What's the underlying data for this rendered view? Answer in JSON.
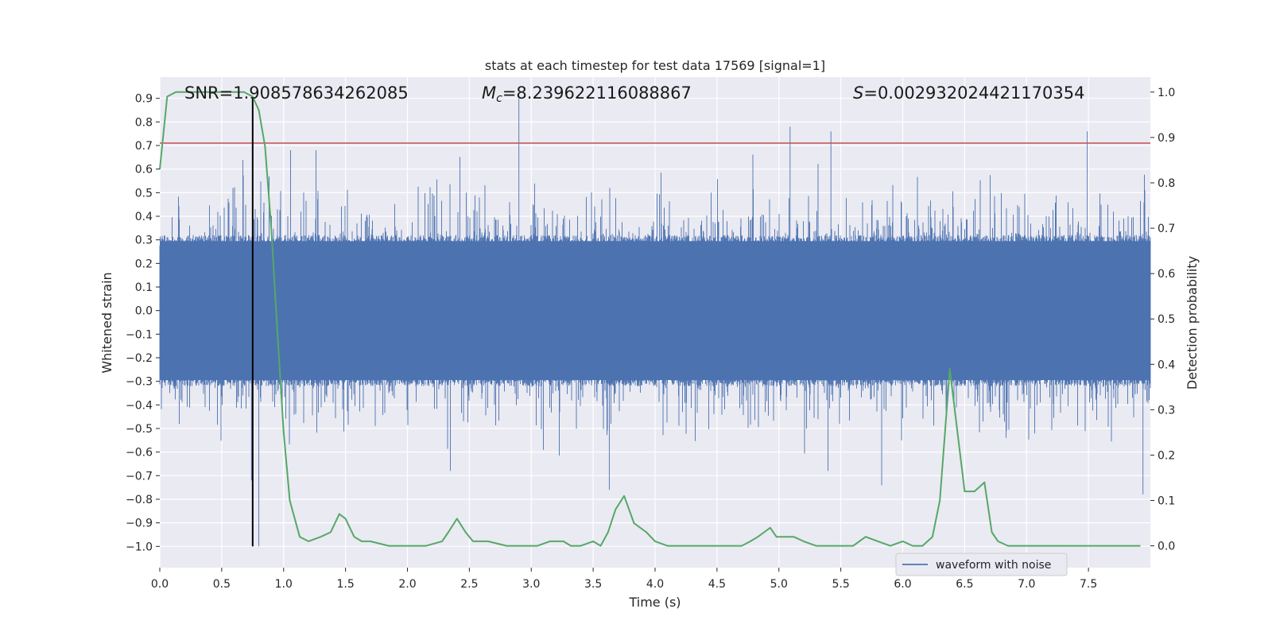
{
  "chart_data": {
    "type": "line",
    "title": "stats at each timestep for test data 17569 [signal=1]",
    "xlabel": "Time (s)",
    "ylabel_left": "Whitened strain",
    "ylabel_right": "Detection probability",
    "xlim": [
      0.0,
      8.0
    ],
    "ylim_left": [
      -1.09,
      0.99
    ],
    "ylim_right": [
      -0.048,
      1.033
    ],
    "x_ticks": [
      "0.0",
      "0.5",
      "1.0",
      "1.5",
      "2.0",
      "2.5",
      "3.0",
      "3.5",
      "4.0",
      "4.5",
      "5.0",
      "5.5",
      "6.0",
      "6.5",
      "7.0",
      "7.5"
    ],
    "y_left_ticks": [
      "0.9",
      "0.8",
      "0.7",
      "0.6",
      "0.5",
      "0.4",
      "0.3",
      "0.2",
      "0.1",
      "0.0",
      "−0.1",
      "−0.2",
      "−0.3",
      "−0.4",
      "−0.5",
      "−0.6",
      "−0.7",
      "−0.8",
      "−0.9",
      "−1.0"
    ],
    "y_left_tick_values": [
      0.9,
      0.8,
      0.7,
      0.6,
      0.5,
      0.4,
      0.3,
      0.2,
      0.1,
      0.0,
      -0.1,
      -0.2,
      -0.3,
      -0.4,
      -0.5,
      -0.6,
      -0.7,
      -0.8,
      -0.9,
      -1.0
    ],
    "y_right_ticks": [
      "1.0",
      "0.9",
      "0.8",
      "0.7",
      "0.6",
      "0.5",
      "0.4",
      "0.3",
      "0.2",
      "0.1",
      "0.0"
    ],
    "y_right_tick_values": [
      1.0,
      0.9,
      0.8,
      0.7,
      0.6,
      0.5,
      0.4,
      0.3,
      0.2,
      0.1,
      0.0
    ],
    "annotations": {
      "snr": "SNR=1.908578634262085",
      "mc_symbol": "M",
      "mc_sub": "c",
      "mc_value": "=8.239622116088867",
      "s_symbol": "S",
      "s_value": "=0.002932024421170354"
    },
    "legend": [
      "waveform with noise"
    ],
    "series": [
      {
        "name": "waveform with noise",
        "axis": "left",
        "color": "#4c72b0",
        "description": "dense noisy strain, mostly within ±0.35 with spikes to ±0.9",
        "envelope_amplitude": 0.32,
        "peaks": [
          {
            "x": 2.9,
            "y": 0.9
          },
          {
            "x": 5.09,
            "y": 0.78
          },
          {
            "x": 5.42,
            "y": 0.76
          },
          {
            "x": 7.49,
            "y": 0.76
          },
          {
            "x": 0.8,
            "y": -1.0
          },
          {
            "x": 0.74,
            "y": -0.72
          },
          {
            "x": 3.63,
            "y": -0.76
          },
          {
            "x": 5.83,
            "y": -0.74
          },
          {
            "x": 7.94,
            "y": -0.78
          },
          {
            "x": 6.48,
            "y": -0.15
          }
        ]
      },
      {
        "name": "detection probability",
        "axis": "right",
        "color": "#55a868",
        "x": [
          0.0,
          0.06,
          0.13,
          0.2,
          0.6,
          0.68,
          0.75,
          0.8,
          0.85,
          0.9,
          0.95,
          1.0,
          1.05,
          1.13,
          1.2,
          1.3,
          1.38,
          1.45,
          1.5,
          1.57,
          1.63,
          1.7,
          1.85,
          2.0,
          2.15,
          2.28,
          2.33,
          2.4,
          2.47,
          2.53,
          2.65,
          2.8,
          2.95,
          3.05,
          3.15,
          3.2,
          3.26,
          3.32,
          3.4,
          3.5,
          3.56,
          3.62,
          3.68,
          3.75,
          3.83,
          3.93,
          4.0,
          4.1,
          4.3,
          4.5,
          4.7,
          4.77,
          4.83,
          4.88,
          4.93,
          4.98,
          5.05,
          5.12,
          5.2,
          5.3,
          5.4,
          5.5,
          5.6,
          5.7,
          5.8,
          5.9,
          6.0,
          6.08,
          6.16,
          6.24,
          6.3,
          6.38,
          6.5,
          6.58,
          6.66,
          6.72,
          6.77,
          6.85,
          7.0,
          7.5,
          7.8,
          7.92
        ],
        "y": [
          0.83,
          0.99,
          1.0,
          1.0,
          1.0,
          1.0,
          0.99,
          0.96,
          0.88,
          0.7,
          0.47,
          0.25,
          0.1,
          0.02,
          0.01,
          0.02,
          0.03,
          0.07,
          0.06,
          0.02,
          0.01,
          0.01,
          0.0,
          0.0,
          0.0,
          0.01,
          0.03,
          0.06,
          0.03,
          0.01,
          0.01,
          0.0,
          0.0,
          0.0,
          0.01,
          0.01,
          0.01,
          0.0,
          0.0,
          0.01,
          0.0,
          0.03,
          0.08,
          0.11,
          0.05,
          0.03,
          0.01,
          0.0,
          0.0,
          0.0,
          0.0,
          0.01,
          0.02,
          0.03,
          0.04,
          0.02,
          0.02,
          0.02,
          0.01,
          0.0,
          0.0,
          0.0,
          0.0,
          0.02,
          0.01,
          0.0,
          0.01,
          0.0,
          0.0,
          0.02,
          0.1,
          0.39,
          0.12,
          0.12,
          0.14,
          0.03,
          0.01,
          0.0,
          0.0,
          0.0,
          0.0,
          0.0
        ]
      }
    ],
    "hlines": [
      {
        "name": "threshold",
        "axis": "left",
        "y": 0.71,
        "color": "#c44e52"
      }
    ],
    "vlines": [
      {
        "name": "marker",
        "x": 0.75,
        "y_from": -1.0,
        "y_to": 0.9,
        "axis": "left",
        "color": "#000000"
      }
    ],
    "grid": true,
    "legend_position": "lower right"
  }
}
